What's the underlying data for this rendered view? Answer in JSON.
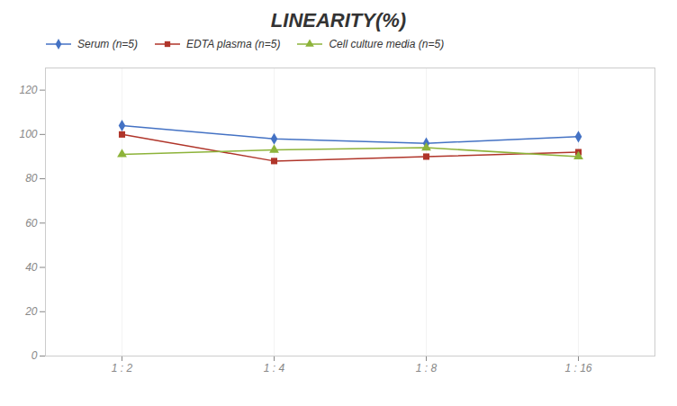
{
  "chart_data": {
    "type": "line",
    "title": "LINEARITY(%)",
    "categories": [
      "1 : 2",
      "1 : 4",
      "1 : 8",
      "1 : 16"
    ],
    "series": [
      {
        "name": "Serum (n=5)",
        "color": "#4472C4",
        "marker": "diamond",
        "values": [
          104,
          98,
          96,
          99
        ]
      },
      {
        "name": "EDTA plasma (n=5)",
        "color": "#B0352A",
        "marker": "square",
        "values": [
          100,
          88,
          90,
          92
        ]
      },
      {
        "name": "Cell culture media (n=5)",
        "color": "#8DB33A",
        "marker": "triangle",
        "values": [
          91,
          93,
          94,
          90
        ]
      }
    ],
    "ylim": [
      0,
      130
    ],
    "yticks": [
      0,
      20,
      40,
      60,
      80,
      100,
      120
    ],
    "grid": "x",
    "legend": "top"
  }
}
